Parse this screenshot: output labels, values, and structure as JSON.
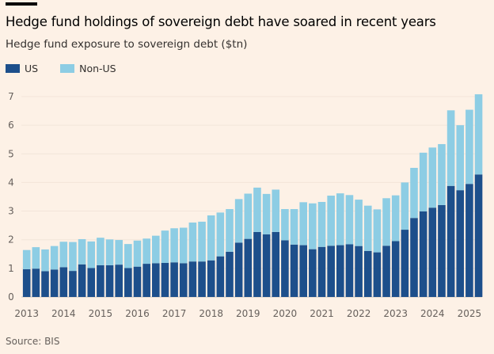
{
  "chart_data": {
    "type": "bar",
    "stacked": true,
    "title": "Hedge fund holdings of sovereign debt have soared in recent years",
    "subtitle": "Hedge fund exposure to sovereign debt ($tn)",
    "source": "Source: BIS",
    "legend_position": "top-left",
    "grid": true,
    "ylim": [
      0,
      7
    ],
    "y_ticks": [
      "0",
      "1",
      "2",
      "3",
      "4",
      "5",
      "6",
      "7"
    ],
    "x_ticks": [
      "2013",
      "2014",
      "2015",
      "2016",
      "2017",
      "2018",
      "2019",
      "2020",
      "2021",
      "2022",
      "2023",
      "2024",
      "2025"
    ],
    "categories": [
      "2013Q1",
      "2013Q2",
      "2013Q3",
      "2013Q4",
      "2014Q1",
      "2014Q2",
      "2014Q3",
      "2014Q4",
      "2015Q1",
      "2015Q2",
      "2015Q3",
      "2015Q4",
      "2016Q1",
      "2016Q2",
      "2016Q3",
      "2016Q4",
      "2017Q1",
      "2017Q2",
      "2017Q3",
      "2017Q4",
      "2018Q1",
      "2018Q2",
      "2018Q3",
      "2018Q4",
      "2019Q1",
      "2019Q2",
      "2019Q3",
      "2019Q4",
      "2020Q1",
      "2020Q2",
      "2020Q3",
      "2020Q4",
      "2021Q1",
      "2021Q2",
      "2021Q3",
      "2021Q4",
      "2022Q1",
      "2022Q2",
      "2022Q3",
      "2022Q4",
      "2023Q1",
      "2023Q2",
      "2023Q3",
      "2023Q4",
      "2024Q1",
      "2024Q2",
      "2024Q3",
      "2024Q4",
      "2025Q1",
      "2025Q2"
    ],
    "series": [
      {
        "name": "US",
        "color": "#1d4f8b",
        "values": [
          0.97,
          0.99,
          0.9,
          0.96,
          1.04,
          0.91,
          1.14,
          1.01,
          1.11,
          1.11,
          1.13,
          1.01,
          1.06,
          1.16,
          1.18,
          1.19,
          1.21,
          1.18,
          1.24,
          1.24,
          1.28,
          1.42,
          1.58,
          1.9,
          2.03,
          2.27,
          2.19,
          2.27,
          1.98,
          1.83,
          1.81,
          1.67,
          1.75,
          1.79,
          1.81,
          1.84,
          1.78,
          1.61,
          1.56,
          1.79,
          1.95,
          2.35,
          2.76,
          2.99,
          3.12,
          3.21,
          3.88,
          3.73,
          3.95,
          4.28
        ]
      },
      {
        "name": "Non-US",
        "color": "#8dcde4",
        "values": [
          0.67,
          0.75,
          0.76,
          0.82,
          0.89,
          1.01,
          0.88,
          0.93,
          0.96,
          0.9,
          0.86,
          0.84,
          0.91,
          0.88,
          0.96,
          1.13,
          1.19,
          1.24,
          1.36,
          1.39,
          1.57,
          1.53,
          1.49,
          1.52,
          1.58,
          1.55,
          1.41,
          1.48,
          1.09,
          1.24,
          1.5,
          1.6,
          1.57,
          1.75,
          1.81,
          1.72,
          1.62,
          1.58,
          1.5,
          1.66,
          1.6,
          1.65,
          1.75,
          2.05,
          2.1,
          2.13,
          2.64,
          2.27,
          2.59,
          2.8
        ]
      }
    ]
  }
}
